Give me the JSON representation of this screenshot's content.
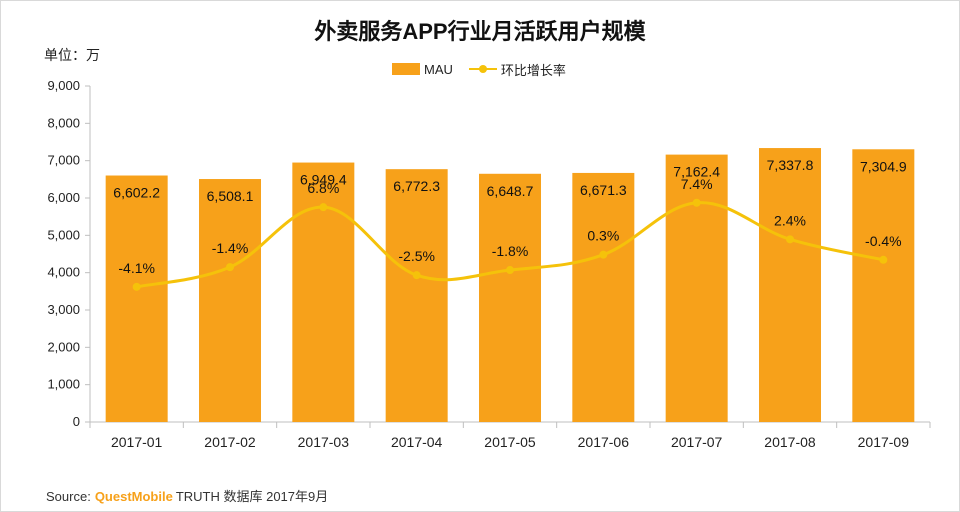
{
  "title": "外卖服务APP行业月活跃用户规模",
  "unit_label": "单位：万",
  "legend": {
    "bar": "MAU",
    "line": "环比增长率"
  },
  "source": {
    "prefix": "Source:",
    "brand": "QuestMobile",
    "suffix": "TRUTH 数据库 2017年9月"
  },
  "colors": {
    "bar": "#F7A11A",
    "line": "#F5C20A",
    "axis": "#bfbfbf",
    "text": "#222222"
  },
  "chart_data": {
    "type": "bar",
    "title": "外卖服务APP行业月活跃用户规模",
    "categories": [
      "2017-01",
      "2017-02",
      "2017-03",
      "2017-04",
      "2017-05",
      "2017-06",
      "2017-07",
      "2017-08",
      "2017-09"
    ],
    "series": [
      {
        "name": "MAU",
        "type": "bar",
        "values": [
          6602.2,
          6508.1,
          6949.4,
          6772.3,
          6648.7,
          6671.3,
          7162.4,
          7337.8,
          7304.9
        ],
        "labels": [
          "6,602.2",
          "6,508.1",
          "6,949.4",
          "6,772.3",
          "6,648.7",
          "6,671.3",
          "7,162.4",
          "7,337.8",
          "7,304.9"
        ]
      },
      {
        "name": "环比增长率",
        "type": "line",
        "values": [
          -4.1,
          -1.4,
          6.8,
          -2.5,
          -1.8,
          0.3,
          7.4,
          2.4,
          -0.4
        ],
        "labels": [
          "-4.1%",
          "-1.4%",
          "6.8%",
          "-2.5%",
          "-1.8%",
          "0.3%",
          "7.4%",
          "2.4%",
          "-0.4%"
        ]
      }
    ],
    "ylim": [
      0,
      9000
    ],
    "yticks": [
      0,
      1000,
      2000,
      3000,
      4000,
      5000,
      6000,
      7000,
      8000,
      9000
    ],
    "ytick_labels": [
      "0",
      "1,000",
      "2,000",
      "3,000",
      "4,000",
      "5,000",
      "6,000",
      "7,000",
      "8,000",
      "9,000"
    ],
    "grid": false,
    "legend_position": "top-center"
  }
}
